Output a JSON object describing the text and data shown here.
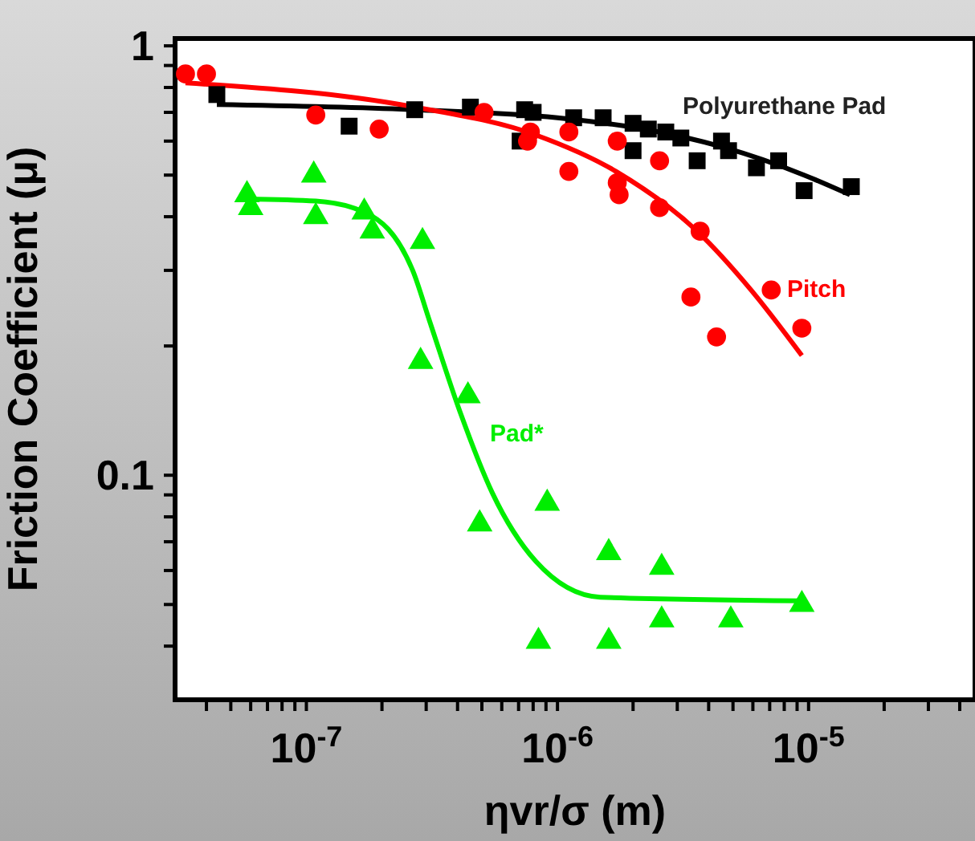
{
  "chart_data": {
    "type": "scatter",
    "xlabel": "ηvr/σ (m)",
    "ylabel": "Friction Coefficient (μ)",
    "log": "xy",
    "legend": false,
    "xlim": [
      3e-08,
      4.6e-05
    ],
    "ylim": [
      0.03,
      1.04
    ],
    "xticks": [
      {
        "value": 4e-08,
        "label": null
      },
      {
        "value": 5e-08,
        "label": null
      },
      {
        "value": 6e-08,
        "label": null
      },
      {
        "value": 7e-08,
        "label": null
      },
      {
        "value": 8e-08,
        "label": null
      },
      {
        "value": 9e-08,
        "label": null
      },
      {
        "value": 1e-07,
        "label": "10$^{-7}$"
      },
      {
        "value": 2e-07,
        "label": null
      },
      {
        "value": 3e-07,
        "label": null
      },
      {
        "value": 4e-07,
        "label": null
      },
      {
        "value": 5e-07,
        "label": null
      },
      {
        "value": 6e-07,
        "label": null
      },
      {
        "value": 7e-07,
        "label": null
      },
      {
        "value": 8e-07,
        "label": null
      },
      {
        "value": 9e-07,
        "label": null
      },
      {
        "value": 1e-06,
        "label": "10$^{-6}$"
      },
      {
        "value": 2e-06,
        "label": null
      },
      {
        "value": 3e-06,
        "label": null
      },
      {
        "value": 4e-06,
        "label": null
      },
      {
        "value": 5e-06,
        "label": null
      },
      {
        "value": 6e-06,
        "label": null
      },
      {
        "value": 7e-06,
        "label": null
      },
      {
        "value": 8e-06,
        "label": null
      },
      {
        "value": 9e-06,
        "label": null
      },
      {
        "value": 1e-05,
        "label": "10$^{-5}$"
      },
      {
        "value": 2e-05,
        "label": null
      },
      {
        "value": 3e-05,
        "label": null
      },
      {
        "value": 4e-05,
        "label": null
      }
    ],
    "yticks": [
      {
        "value": 0.04,
        "label": null
      },
      {
        "value": 0.05,
        "label": null
      },
      {
        "value": 0.06,
        "label": null
      },
      {
        "value": 0.07,
        "label": null
      },
      {
        "value": 0.08,
        "label": null
      },
      {
        "value": 0.09,
        "label": null
      },
      {
        "value": 0.1,
        "label": "0.1"
      },
      {
        "value": 0.2,
        "label": null
      },
      {
        "value": 0.3,
        "label": null
      },
      {
        "value": 0.4,
        "label": null
      },
      {
        "value": 0.5,
        "label": null
      },
      {
        "value": 0.6,
        "label": null
      },
      {
        "value": 0.7,
        "label": null
      },
      {
        "value": 0.8,
        "label": null
      },
      {
        "value": 0.9,
        "label": null
      },
      {
        "value": 1,
        "label": "1"
      }
    ],
    "series": [
      {
        "type": "scatter",
        "name": "Polyurethane Pad",
        "color": "#000000",
        "marker": "square",
        "x": [
          4.4e-08,
          1.48e-07,
          2.7e-07,
          4.5e-07,
          7.1e-07,
          7.4e-07,
          8e-07,
          1.16e-06,
          1.52e-06,
          2e-06,
          2e-06,
          2.3e-06,
          2.7e-06,
          3.1e-06,
          3.6e-06,
          4.5e-06,
          4.8e-06,
          6.2e-06,
          7.6e-06,
          9.6e-06,
          1.48e-05
        ],
        "values": [
          0.77,
          0.65,
          0.71,
          0.72,
          0.6,
          0.71,
          0.7,
          0.68,
          0.68,
          0.57,
          0.66,
          0.64,
          0.63,
          0.61,
          0.54,
          0.6,
          0.57,
          0.52,
          0.54,
          0.46,
          0.47
        ]
      },
      {
        "type": "scatter",
        "name": "Pitch",
        "color": "#ff0000",
        "marker": "circle",
        "x": [
          3.3e-08,
          4e-08,
          1.09e-07,
          1.95e-07,
          5.1e-07,
          7.6e-07,
          7.8e-07,
          1.11e-06,
          1.11e-06,
          1.73e-06,
          1.73e-06,
          1.76e-06,
          2.55e-06,
          2.55e-06,
          3.7e-06,
          3.4e-06,
          4.3e-06,
          7.1e-06,
          9.4e-06
        ],
        "values": [
          0.86,
          0.86,
          0.69,
          0.64,
          0.7,
          0.6,
          0.63,
          0.63,
          0.51,
          0.6,
          0.48,
          0.45,
          0.54,
          0.42,
          0.37,
          0.26,
          0.21,
          0.27,
          0.22
        ]
      },
      {
        "type": "scatter",
        "name": "Pad*",
        "color": "#00ee00",
        "marker": "triangle",
        "x": [
          5.8e-08,
          6e-08,
          1.07e-07,
          1.09e-07,
          1.7e-07,
          1.83e-07,
          2.9e-07,
          2.85e-07,
          4.4e-07,
          4.9e-07,
          9.1e-07,
          8.4e-07,
          1.6e-06,
          1.6e-06,
          2.6e-06,
          2.6e-06,
          4.9e-06,
          9.4e-06
        ],
        "values": [
          0.45,
          0.42,
          0.5,
          0.4,
          0.41,
          0.37,
          0.35,
          0.184,
          0.153,
          0.077,
          0.086,
          0.041,
          0.066,
          0.041,
          0.061,
          0.046,
          0.046,
          0.05
        ]
      },
      {
        "type": "line",
        "color": "#000000",
        "marker": "none",
        "x": [
          4.4e-08,
          2.7e-07,
          1e-06,
          2.2e-06,
          4.6e-06,
          9.6e-06,
          1.46e-05
        ],
        "values": [
          0.73,
          0.71,
          0.68,
          0.64,
          0.58,
          0.5,
          0.45
        ]
      },
      {
        "type": "line",
        "color": "#ff0000",
        "marker": "none",
        "x": [
          3.3e-08,
          2.7e-07,
          8.2e-07,
          1.71e-06,
          3.6e-06,
          5.9e-06,
          9.4e-06
        ],
        "values": [
          0.82,
          0.72,
          0.62,
          0.51,
          0.37,
          0.27,
          0.19
        ]
      },
      {
        "type": "line",
        "color": "#00ee00",
        "marker": "none",
        "x": [
          5.8e-08,
          1.09e-07,
          1.7e-07,
          2.65e-07,
          3.1e-07,
          4.1e-07,
          5.5e-07,
          8.2e-07,
          1.48e-06,
          9.6e-06
        ],
        "values": [
          0.44,
          0.435,
          0.41,
          0.3,
          0.228,
          0.14,
          0.091,
          0.063,
          0.052,
          0.051
        ]
      }
    ]
  }
}
